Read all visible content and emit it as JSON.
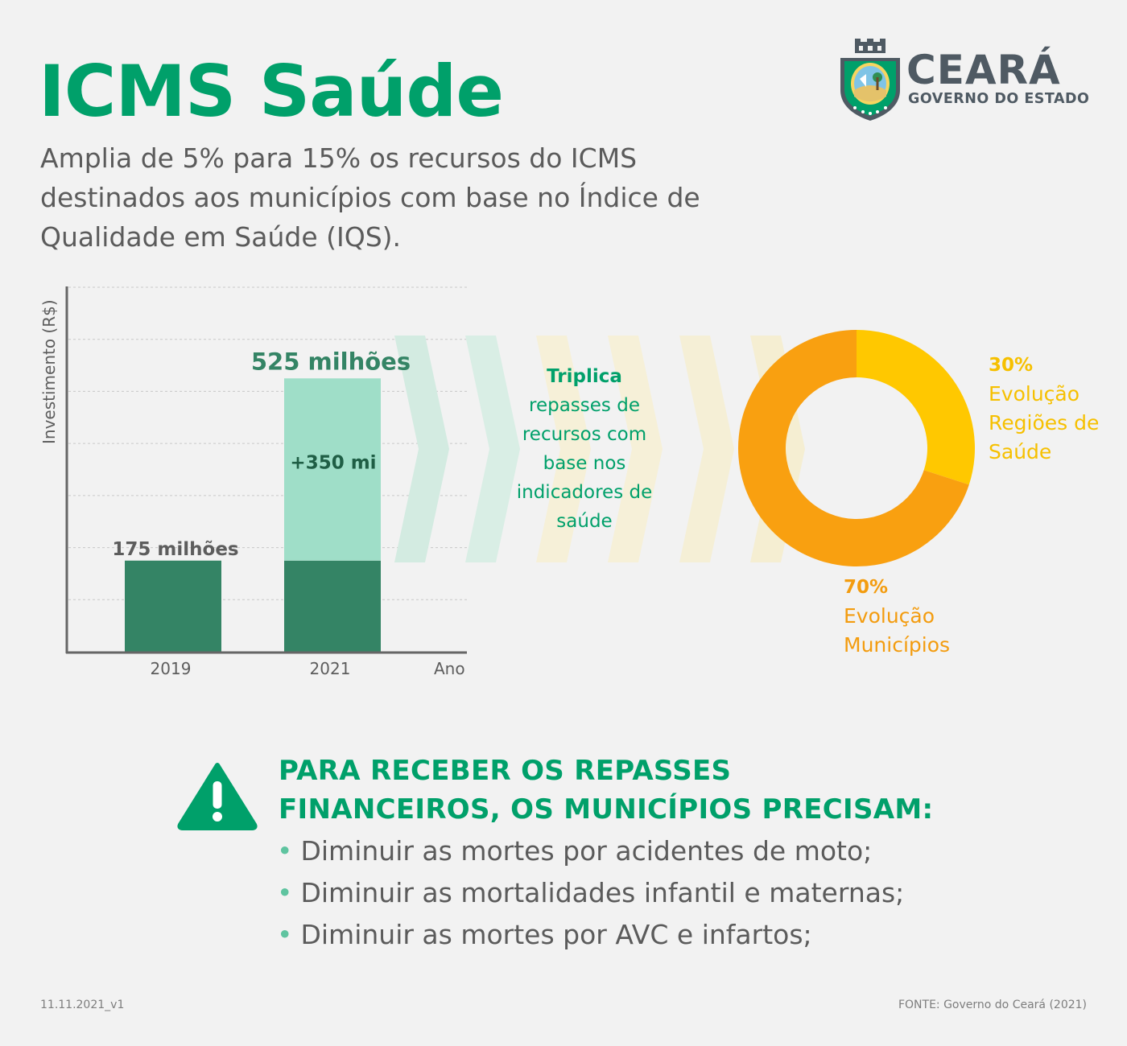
{
  "header": {
    "title": "ICMS Saúde",
    "subtitle": "Amplia de 5% para 15% os recursos do ICMS destinados aos municípios com base no Índice de Qualidade em Saúde (IQS).",
    "logo_name": "CEARÁ",
    "logo_sub": "GOVERNO DO ESTADO"
  },
  "colors": {
    "accent": "#00a06a",
    "bar_dark": "#348465",
    "bar_light": "#9fdec8",
    "yellow": "#ffc800",
    "orange": "#f9a010"
  },
  "chart_data": [
    {
      "type": "bar",
      "stacked": true,
      "categories": [
        "2019",
        "2021"
      ],
      "xlabel": "Ano",
      "ylabel": "Investimento (R$)",
      "series": [
        {
          "values": [
            175,
            175
          ]
        },
        {
          "values": [
            0,
            350
          ]
        }
      ],
      "data_labels": [
        "175 milhões",
        "525 milhões"
      ],
      "increment_label": "+350 mi",
      "ylim": [
        0,
        700
      ],
      "grid": true
    },
    {
      "type": "pie",
      "donut": true,
      "slices": [
        {
          "label": "Evolução Regiões de Saúde",
          "value": 30,
          "value_label": "30%",
          "color": "#ffc800"
        },
        {
          "label": "Evolução Municípios",
          "value": 70,
          "value_label": "70%",
          "color": "#f9a010"
        }
      ]
    }
  ],
  "middle_text": {
    "bold": "Triplica",
    "rest": "repasses de recursos com base nos indicadores de saúde"
  },
  "requirements": {
    "title": "PARA RECEBER OS REPASSES FINANCEIROS, OS MUNICÍPIOS PRECISAM:",
    "bullet": "•",
    "items": [
      "Diminuir as mortes por acidentes de moto;",
      "Diminuir as mortalidades infantil e maternas;",
      "Diminuir as mortes por AVC e infartos;"
    ]
  },
  "footer": {
    "version": "11.11.2021_v1",
    "source": "FONTE: Governo do Ceará (2021)"
  }
}
